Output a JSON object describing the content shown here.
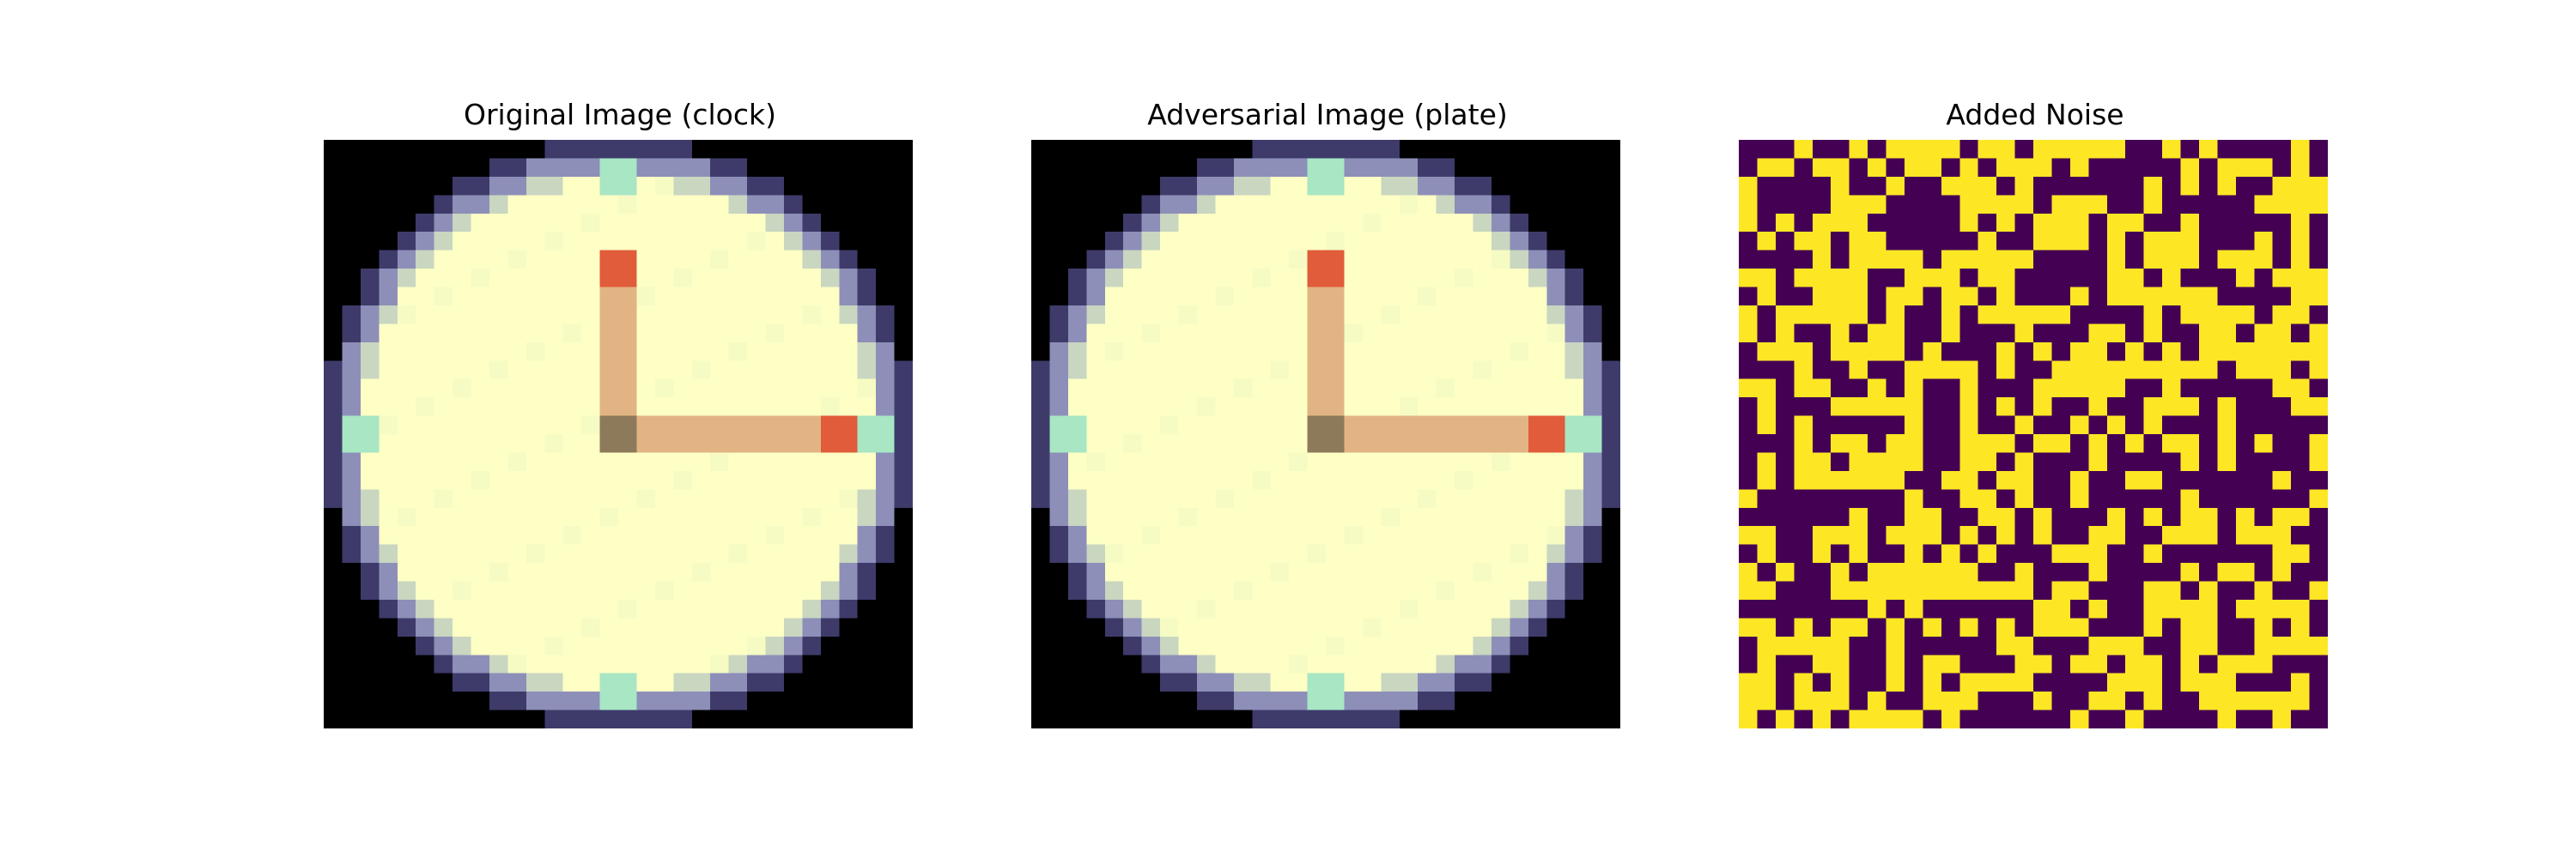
{
  "panels": [
    {
      "title": "Original Image (clock)"
    },
    {
      "title": "Adversarial Image (plate)"
    },
    {
      "title": "Added Noise"
    }
  ],
  "image": {
    "grid_size": 32,
    "clock_colors": {
      "background": "#000000",
      "face": "#fdffc5",
      "face_shade": "#f6fbc4",
      "rim_light": "#c9d6c0",
      "rim_mid": "#8d8fb8",
      "rim_dark": "#3e3b6b",
      "marker": "#a8e6c4",
      "hand": "#e2b483",
      "hand_tip": "#e05c3a",
      "hub": "#8d7a5a"
    },
    "noise_colors": {
      "positive": "#fde725",
      "negative": "#440154"
    }
  }
}
